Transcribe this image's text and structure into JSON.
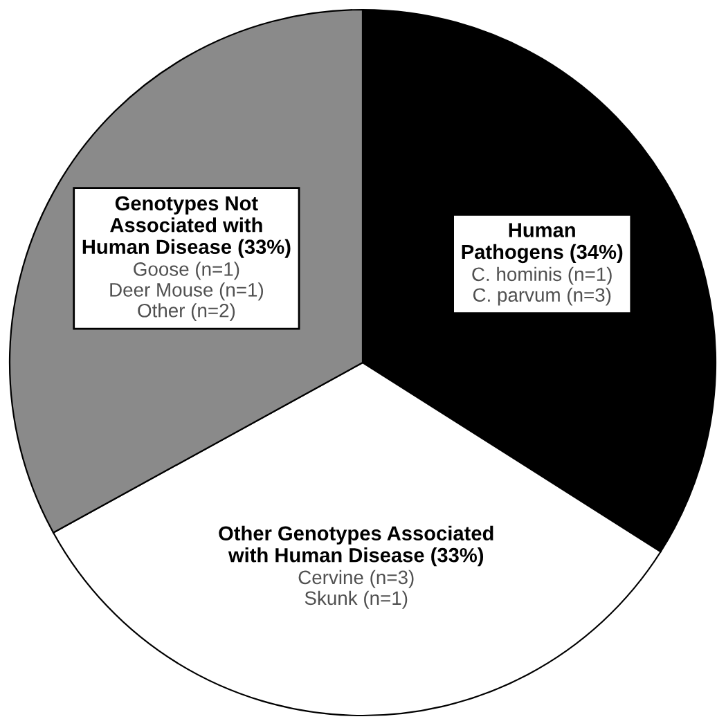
{
  "chart_data": {
    "type": "pie",
    "categories": [
      "Human\nPathogens (34%)",
      "Other Genotypes Associated\nwith Human Disease (33%)",
      "Genotypes Not\nAssociated with\nHuman Disease (33%)"
    ],
    "values": [
      34,
      33,
      33
    ],
    "colors": [
      "#000000",
      "#ffffff",
      "#8a8a8a"
    ],
    "annotations": [
      "C. hominis (n=1)\nC. parvum (n=3)",
      "Cervine (n=3)\nSkunk (n=1)",
      "Goose (n=1)\nDeer Mouse (n=1)\nOther (n=2)"
    ],
    "legend": false
  }
}
